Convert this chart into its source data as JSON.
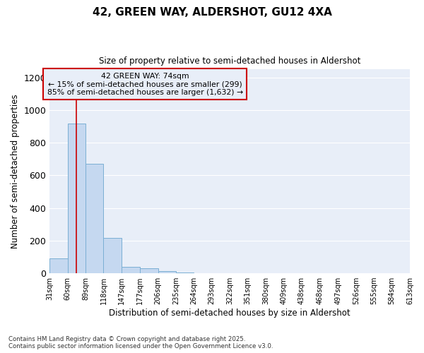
{
  "title1": "42, GREEN WAY, ALDERSHOT, GU12 4XA",
  "title2": "Size of property relative to semi-detached houses in Aldershot",
  "xlabel": "Distribution of semi-detached houses by size in Aldershot",
  "ylabel": "Number of semi-detached properties",
  "bin_edges": [
    31,
    60,
    89,
    118,
    147,
    177,
    206,
    235,
    264,
    293,
    322,
    351,
    380,
    409,
    438,
    468,
    497,
    526,
    555,
    584,
    613
  ],
  "bar_heights": [
    90,
    920,
    670,
    215,
    40,
    30,
    15,
    5,
    2,
    1,
    0,
    0,
    0,
    0,
    0,
    0,
    0,
    0,
    0,
    0
  ],
  "bar_color": "#c5d8f0",
  "bar_edgecolor": "#7bafd4",
  "subject_size": 74,
  "pct_smaller": 15,
  "count_smaller": 299,
  "pct_larger": 85,
  "count_larger": 1632,
  "vline_color": "#cc0000",
  "annotation_box_color": "#cc0000",
  "ylim": [
    0,
    1250
  ],
  "yticks": [
    0,
    200,
    400,
    600,
    800,
    1000,
    1200
  ],
  "footnote1": "Contains HM Land Registry data © Crown copyright and database right 2025.",
  "footnote2": "Contains public sector information licensed under the Open Government Licence v3.0.",
  "bg_color": "#ffffff",
  "plot_bg_color": "#e8eef8",
  "grid_color": "#ffffff"
}
